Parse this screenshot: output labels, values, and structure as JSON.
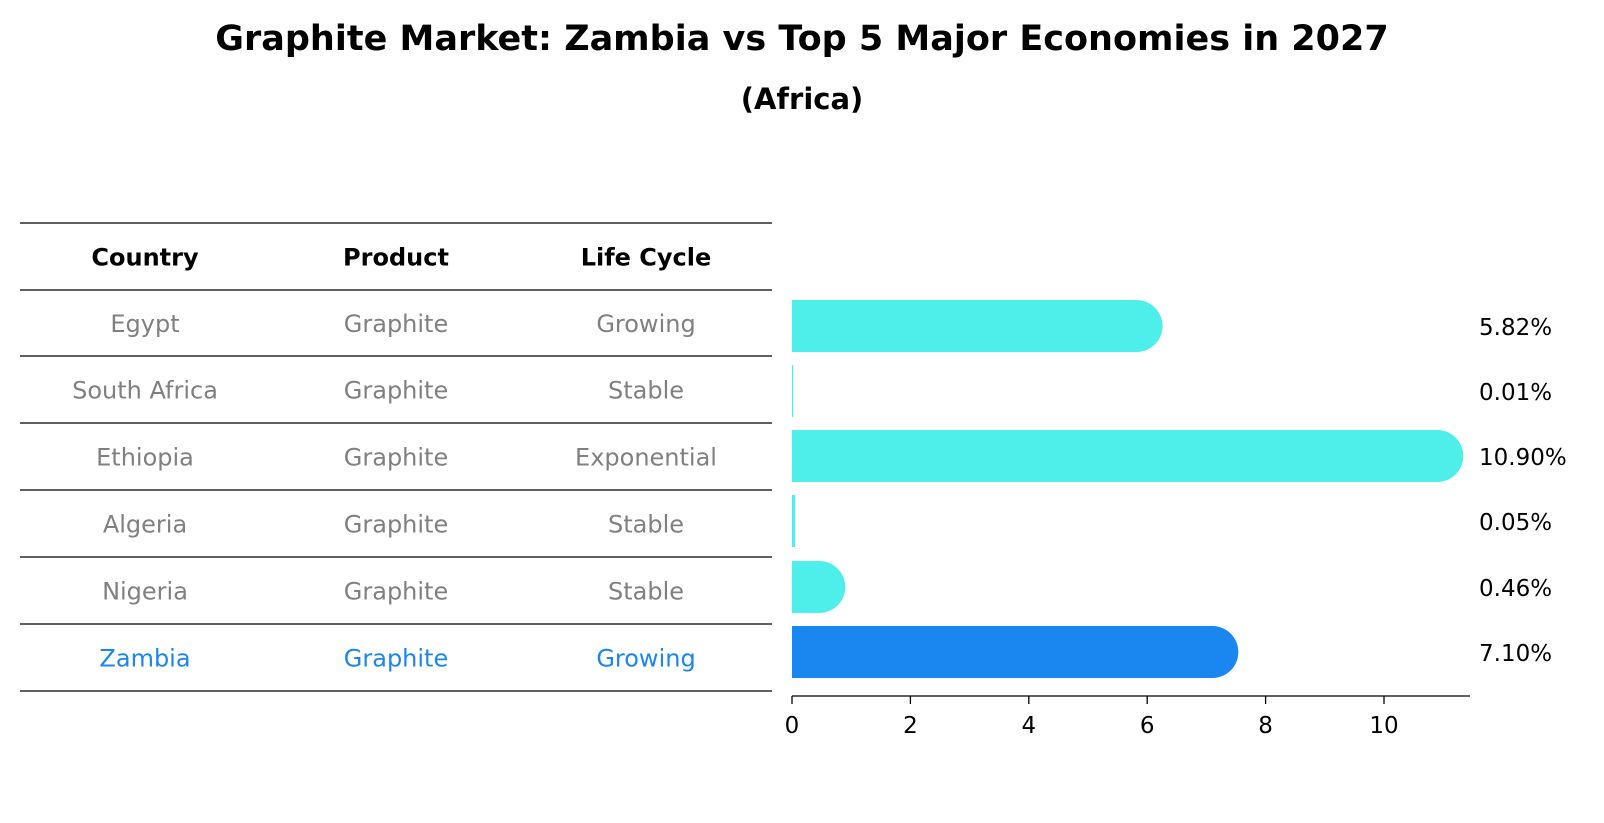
{
  "title": "Graphite Market: Zambia vs Top 5 Major Economies in 2027",
  "subtitle": "(Africa)",
  "table": {
    "headers": [
      "Country",
      "Product",
      "Life Cycle"
    ],
    "rows": [
      [
        "Egypt",
        "Graphite",
        "Growing"
      ],
      [
        "South Africa",
        "Graphite",
        "Stable"
      ],
      [
        "Ethiopia",
        "Graphite",
        "Exponential"
      ],
      [
        "Algeria",
        "Graphite",
        "Stable"
      ],
      [
        "Nigeria",
        "Graphite",
        "Stable"
      ],
      [
        "Zambia",
        "Graphite",
        "Growing"
      ]
    ],
    "highlight_row": 5
  },
  "colors": {
    "bar": "#4EEEEA",
    "highlight": "#1A86F0",
    "muted_text": "#808080",
    "text": "#000000"
  },
  "chart_data": {
    "type": "bar",
    "orientation": "horizontal",
    "categories": [
      "Egypt",
      "South Africa",
      "Ethiopia",
      "Algeria",
      "Nigeria",
      "Zambia"
    ],
    "values": [
      5.82,
      0.01,
      10.9,
      0.05,
      0.46,
      7.1
    ],
    "value_labels": [
      "5.82%",
      "0.01%",
      "10.90%",
      "0.05%",
      "0.46%",
      "7.10%"
    ],
    "xticks": [
      0,
      2,
      4,
      6,
      8,
      10
    ],
    "xlim": [
      0,
      11.45
    ],
    "xlabel": "",
    "ylabel": "",
    "highlight": "Zambia",
    "grid": false
  }
}
